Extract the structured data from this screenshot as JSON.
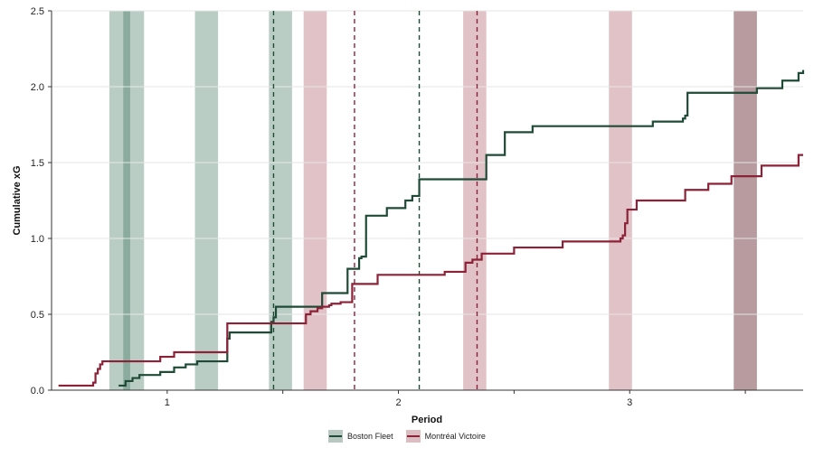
{
  "chart_data": {
    "type": "line",
    "xlabel": "Period",
    "ylabel": "Cumulative xG",
    "xlim": [
      0.5,
      3.75
    ],
    "ylim": [
      0,
      2.5
    ],
    "x_ticks": [
      1,
      2,
      3
    ],
    "x_tick_labels": [
      "1",
      "2",
      "3"
    ],
    "y_ticks": [
      0.0,
      0.5,
      1.0,
      1.5,
      2.0,
      2.5
    ],
    "y_tick_labels": [
      "0.0",
      "0.5",
      "1.0",
      "1.5",
      "2.0",
      "2.5"
    ],
    "grid": "horizontal",
    "legend_position": "bottom-center",
    "series": [
      {
        "name": "Boston Fleet",
        "color": "#1f4a36",
        "x": [
          0.79,
          0.82,
          0.85,
          0.88,
          0.97,
          1.03,
          1.08,
          1.13,
          1.26,
          1.26,
          1.27,
          1.45,
          1.46,
          1.47,
          1.67,
          1.78,
          1.83,
          1.84,
          1.86,
          1.95,
          2.03,
          2.06,
          2.09,
          2.38,
          2.46,
          2.58,
          3.1,
          3.23,
          3.24,
          3.25,
          3.55,
          3.66,
          3.73,
          3.75
        ],
        "y": [
          0.03,
          0.06,
          0.08,
          0.1,
          0.12,
          0.15,
          0.17,
          0.19,
          0.29,
          0.34,
          0.38,
          0.45,
          0.48,
          0.55,
          0.64,
          0.8,
          0.87,
          0.88,
          1.15,
          1.2,
          1.25,
          1.28,
          1.39,
          1.55,
          1.7,
          1.74,
          1.77,
          1.79,
          1.81,
          1.96,
          1.99,
          2.04,
          2.09,
          2.11
        ]
      },
      {
        "name": "Montréal Victoire",
        "color": "#8c2237",
        "x": [
          0.53,
          0.68,
          0.69,
          0.7,
          0.71,
          0.72,
          0.97,
          1.03,
          1.26,
          1.6,
          1.62,
          1.65,
          1.67,
          1.7,
          1.71,
          1.75,
          1.8,
          1.91,
          2.2,
          2.29,
          2.32,
          2.36,
          2.5,
          2.71,
          2.96,
          2.97,
          2.98,
          2.99,
          3.03,
          3.24,
          3.34,
          3.44,
          3.57,
          3.73,
          3.75
        ],
        "y": [
          0.03,
          0.05,
          0.11,
          0.14,
          0.17,
          0.19,
          0.22,
          0.25,
          0.44,
          0.5,
          0.52,
          0.54,
          0.55,
          0.56,
          0.57,
          0.58,
          0.7,
          0.76,
          0.78,
          0.84,
          0.86,
          0.9,
          0.94,
          0.98,
          1.0,
          1.02,
          1.1,
          1.19,
          1.25,
          1.32,
          1.36,
          1.41,
          1.48,
          1.55,
          1.55
        ]
      }
    ],
    "shaded_intervals": [
      {
        "team": "Boston Fleet",
        "from": 0.75,
        "to": 0.84,
        "color": "#2e6650"
      },
      {
        "team": "Boston Fleet",
        "from": 0.81,
        "to": 0.9,
        "color": "#2e6650"
      },
      {
        "team": "Boston Fleet",
        "from": 1.12,
        "to": 1.22,
        "color": "#2e6650"
      },
      {
        "team": "Boston Fleet",
        "from": 1.44,
        "to": 1.54,
        "color": "#2e6650"
      },
      {
        "team": "Montréal Victoire",
        "from": 1.59,
        "to": 1.69,
        "color": "#a34656"
      },
      {
        "team": "Montréal Victoire",
        "from": 2.28,
        "to": 2.38,
        "color": "#a34656"
      },
      {
        "team": "Montréal Victoire",
        "from": 2.91,
        "to": 3.01,
        "color": "#a34656"
      },
      {
        "team": "Boston Fleet",
        "from": 3.45,
        "to": 3.55,
        "color": "#3f4f45"
      },
      {
        "team": "Montréal Victoire",
        "from": 3.45,
        "to": 3.55,
        "color": "#a34656"
      }
    ],
    "goal_markers": [
      {
        "team": "Boston Fleet",
        "x": 1.46,
        "color": "#1f4a36"
      },
      {
        "team": "Montréal Victoire",
        "x": 1.81,
        "color": "#8c2237"
      },
      {
        "team": "Boston Fleet",
        "x": 2.09,
        "color": "#1f4a36"
      },
      {
        "team": "Montréal Victoire",
        "x": 2.34,
        "color": "#8c2237"
      }
    ]
  }
}
